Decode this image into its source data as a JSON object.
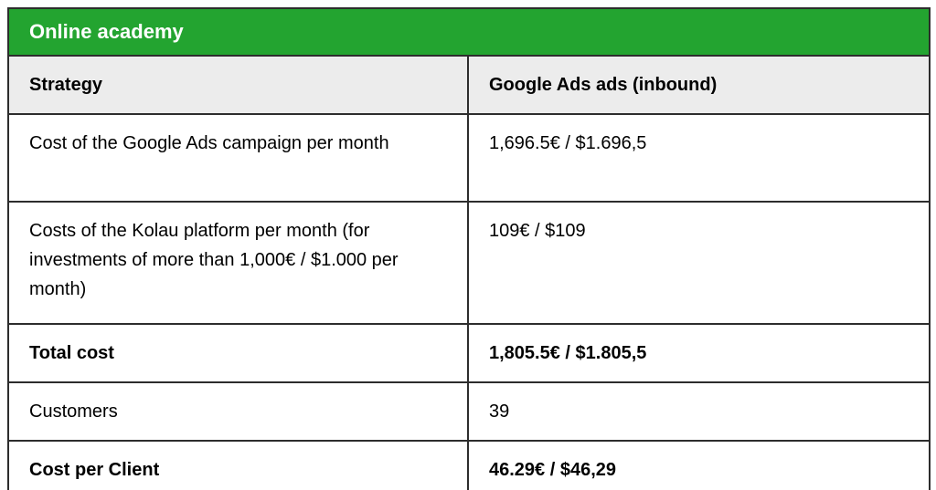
{
  "title": "Online academy",
  "colors": {
    "title_bar_bg": "#23a430",
    "title_text": "#ffffff",
    "header_row_bg": "#ececec",
    "border": "#2d2d2d",
    "body_text": "#000000"
  },
  "table": {
    "columns": [
      "Strategy",
      "Google Ads ads (inbound)"
    ],
    "rows": [
      {
        "label": "Cost of the Google Ads campaign per month",
        "value": "1,696.5€ / $1.696,5",
        "bold": false
      },
      {
        "label": "Costs of the Kolau platform per month (for investments of more than 1,000€ / $1.000 per month)",
        "value": "109€ / $109",
        "bold": false
      },
      {
        "label": "Total cost",
        "value": "1,805.5€ / $1.805,5",
        "bold": true
      },
      {
        "label": "Customers",
        "value": "39",
        "bold": false
      },
      {
        "label": "Cost per Client",
        "value": "46.29€ / $46,29",
        "bold": true
      }
    ]
  }
}
